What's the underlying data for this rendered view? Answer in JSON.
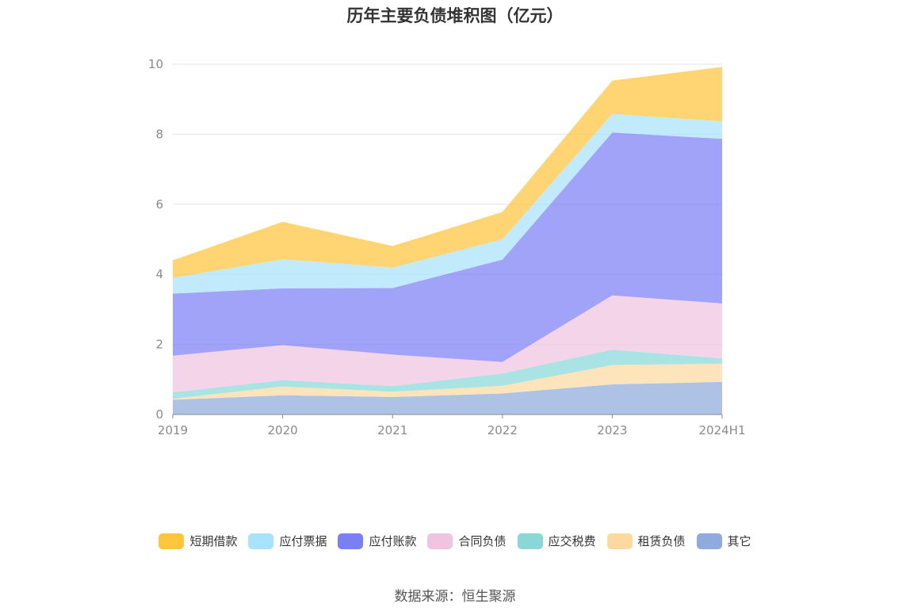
{
  "chart_data": {
    "type": "area",
    "stacked": true,
    "title": "历年主要负债堆积图（亿元）",
    "source": "数据来源：恒生聚源",
    "categories": [
      "2019",
      "2020",
      "2021",
      "2022",
      "2023",
      "2024H1"
    ],
    "ylim": [
      0,
      10
    ],
    "yticks": [
      "0",
      "2",
      "4",
      "6",
      "8",
      "10"
    ],
    "grid": true,
    "legend_position": "bottom",
    "series": [
      {
        "name": "其它",
        "color": "#8faadc",
        "values": [
          0.42,
          0.55,
          0.5,
          0.6,
          0.86,
          0.93
        ]
      },
      {
        "name": "租赁负债",
        "color": "#fdd9a0",
        "values": [
          0.03,
          0.25,
          0.15,
          0.22,
          0.55,
          0.52
        ]
      },
      {
        "name": "应交税费",
        "color": "#88d8d8",
        "values": [
          0.18,
          0.18,
          0.16,
          0.35,
          0.44,
          0.15
        ]
      },
      {
        "name": "合同负债",
        "color": "#f0c4e0",
        "values": [
          1.05,
          1.0,
          0.9,
          0.33,
          1.55,
          1.57
        ]
      },
      {
        "name": "应付账款",
        "color": "#7b7ff4",
        "values": [
          1.77,
          1.62,
          1.9,
          2.92,
          4.65,
          4.7
        ]
      },
      {
        "name": "应付票据",
        "color": "#a9e3fb",
        "values": [
          0.45,
          0.83,
          0.58,
          0.58,
          0.53,
          0.5
        ]
      },
      {
        "name": "短期借款",
        "color": "#ffc53d",
        "values": [
          0.5,
          1.07,
          0.62,
          0.78,
          0.95,
          1.55
        ]
      }
    ],
    "legend_order": [
      "短期借款",
      "应付票据",
      "应付账款",
      "合同负债",
      "应交税费",
      "租赁负债",
      "其它"
    ]
  }
}
